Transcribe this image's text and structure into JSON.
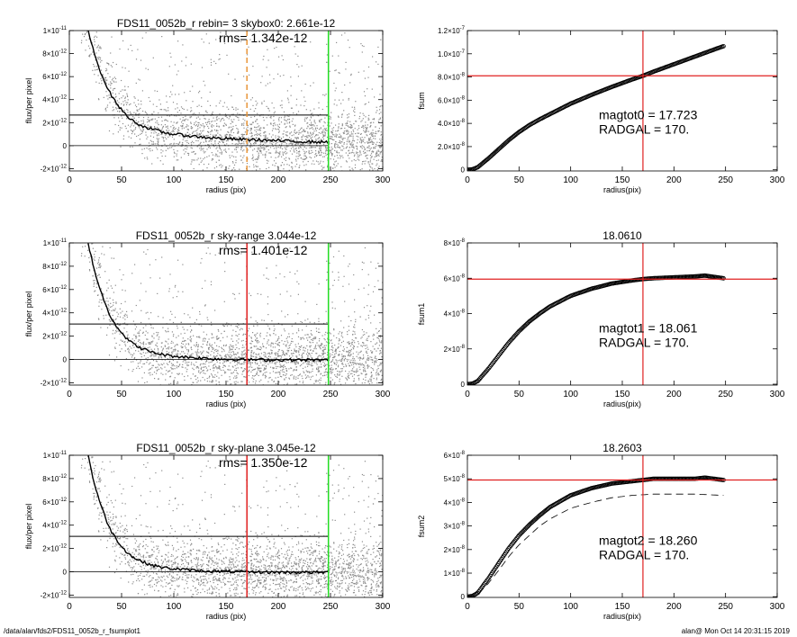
{
  "footer": {
    "path": "/data/alan/fds2/FDS11_0052b_r_fsumplot1",
    "user_time": "alan@  Mon Oct 14 20:31:15 2019"
  },
  "colors": {
    "axis": "#000000",
    "scatter": "#8c8c8c",
    "profile": "#000000",
    "red": "#e02020",
    "green": "#22dd22",
    "orange": "#e8963a"
  },
  "chart_data": [
    {
      "id": "flux1",
      "type": "scatter",
      "title": "FDS11_0052b_r rebin= 3    skybox0:  2.661e-12",
      "annotation": "rms= 1.342e-12",
      "xlabel": "radius (pix)",
      "ylabel": "flux/per pixel",
      "xlim": [
        0,
        300
      ],
      "ylim": [
        -2.2e-12,
        1e-11
      ],
      "xticks": [
        0,
        50,
        100,
        150,
        200,
        250,
        300
      ],
      "yticks": [
        {
          "value": -2e-12,
          "label": "-2×10-12"
        },
        {
          "value": 0,
          "label": "0"
        },
        {
          "value": 2e-12,
          "label": "2×10-12"
        },
        {
          "value": 4e-12,
          "label": "4×10-12"
        },
        {
          "value": 6e-12,
          "label": "6×10-12"
        },
        {
          "value": 8e-12,
          "label": "8×10-12"
        },
        {
          "value": 1e-11,
          "label": "1×10-11"
        }
      ],
      "sky_level": 2.661e-12,
      "rms": 1.342e-12,
      "vlines": [
        {
          "x": 170,
          "color": "orange",
          "dashed": true
        },
        {
          "x": 248,
          "color": "green",
          "dashed": false
        }
      ],
      "profile": {
        "x": [
          18,
          22,
          26,
          30,
          35,
          40,
          45,
          50,
          55,
          60,
          70,
          80,
          90,
          100,
          120,
          140,
          160,
          180,
          200,
          220,
          248
        ],
        "y": [
          1e-11,
          8.6e-12,
          7.4e-12,
          6.4e-12,
          5.3e-12,
          4.4e-12,
          3.7e-12,
          3.1e-12,
          2.6e-12,
          2.2e-12,
          1.7e-12,
          1.4e-12,
          1.15e-12,
          1e-12,
          8e-13,
          6.5e-13,
          5.5e-13,
          5e-13,
          4.2e-13,
          3.6e-13,
          3e-13
        ]
      }
    },
    {
      "id": "fsum",
      "type": "line",
      "title": "",
      "xlabel": "radius(pix)",
      "ylabel": "fsum",
      "annotation_lines": [
        "magtot0 =  17.723",
        "RADGAL =    170."
      ],
      "xlim": [
        0,
        300
      ],
      "ylim": [
        -1e-09,
        1.2e-07
      ],
      "xticks": [
        0,
        50,
        100,
        150,
        200,
        250,
        300
      ],
      "yticks": [
        {
          "value": 0,
          "label": "0"
        },
        {
          "value": 2e-08,
          "label": "2.0×10-8"
        },
        {
          "value": 4e-08,
          "label": "4.0×10-8"
        },
        {
          "value": 6e-08,
          "label": "6.0×10-8"
        },
        {
          "value": 8e-08,
          "label": "8.0×10-8"
        },
        {
          "value": 1e-07,
          "label": "1.0×10-7"
        },
        {
          "value": 1.2e-07,
          "label": "1.2×10-7"
        }
      ],
      "radgal": 170,
      "total": 8.1e-08,
      "curve": {
        "x": [
          0,
          5,
          10,
          20,
          30,
          40,
          50,
          60,
          70,
          80,
          100,
          120,
          140,
          160,
          170,
          180,
          200,
          220,
          240,
          248
        ],
        "y": [
          0,
          4e-10,
          2.2e-09,
          9.5e-09,
          1.75e-08,
          2.55e-08,
          3.25e-08,
          3.85e-08,
          4.35e-08,
          4.8e-08,
          5.7e-08,
          6.45e-08,
          7.15e-08,
          7.8e-08,
          8.1e-08,
          8.45e-08,
          9.1e-08,
          9.75e-08,
          1.04e-07,
          1.065e-07
        ]
      }
    },
    {
      "id": "flux2",
      "type": "scatter",
      "title": "FDS11_0052b_r sky-range  3.044e-12",
      "annotation": "rms= 1.401e-12",
      "xlabel": "radius (pix)",
      "ylabel": "flux/per pixel",
      "xlim": [
        0,
        300
      ],
      "ylim": [
        -2.2e-12,
        1e-11
      ],
      "xticks": [
        0,
        50,
        100,
        150,
        200,
        250,
        300
      ],
      "yticks": [
        {
          "value": -2e-12,
          "label": "-2×10-12"
        },
        {
          "value": 0,
          "label": "0"
        },
        {
          "value": 2e-12,
          "label": "2×10-12"
        },
        {
          "value": 4e-12,
          "label": "4×10-12"
        },
        {
          "value": 6e-12,
          "label": "6×10-12"
        },
        {
          "value": 8e-12,
          "label": "8×10-12"
        },
        {
          "value": 1e-11,
          "label": "1×10-11"
        }
      ],
      "sky_level": 3.044e-12,
      "rms": 1.401e-12,
      "vlines": [
        {
          "x": 170,
          "color": "red",
          "dashed": false
        },
        {
          "x": 248,
          "color": "green",
          "dashed": false
        }
      ],
      "profile": {
        "x": [
          18,
          22,
          26,
          30,
          35,
          40,
          45,
          50,
          55,
          60,
          70,
          80,
          90,
          100,
          120,
          140,
          160,
          180,
          200,
          220,
          248
        ],
        "y": [
          1e-11,
          8.4e-12,
          7e-12,
          5.9e-12,
          4.6e-12,
          3.6e-12,
          2.9e-12,
          2.3e-12,
          1.8e-12,
          1.4e-12,
          9e-13,
          6e-13,
          4e-13,
          2.8e-13,
          1.5e-13,
          5e-14,
          0,
          -3e-14,
          -4e-14,
          -5e-14,
          -6e-14
        ]
      }
    },
    {
      "id": "fsum1",
      "type": "line",
      "title": "18.0610",
      "xlabel": "radius(pix)",
      "ylabel": "fsum1",
      "annotation_lines": [
        "magtot1 =  18.061",
        "RADGAL =    170."
      ],
      "xlim": [
        0,
        300
      ],
      "ylim": [
        -5e-10,
        8e-08
      ],
      "xticks": [
        0,
        50,
        100,
        150,
        200,
        250,
        300
      ],
      "yticks": [
        {
          "value": 0,
          "label": "0"
        },
        {
          "value": 2e-08,
          "label": "2×10-8"
        },
        {
          "value": 4e-08,
          "label": "4×10-8"
        },
        {
          "value": 6e-08,
          "label": "6×10-8"
        },
        {
          "value": 8e-08,
          "label": "8×10-8"
        }
      ],
      "radgal": 170,
      "total": 5.95e-08,
      "curve": {
        "x": [
          0,
          5,
          10,
          20,
          30,
          40,
          50,
          60,
          70,
          80,
          90,
          100,
          120,
          140,
          160,
          170,
          180,
          200,
          220,
          230,
          248
        ],
        "y": [
          0,
          3e-10,
          1.8e-09,
          8.5e-09,
          1.6e-08,
          2.35e-08,
          3e-08,
          3.55e-08,
          4e-08,
          4.4e-08,
          4.7e-08,
          5e-08,
          5.4e-08,
          5.7e-08,
          5.88e-08,
          5.95e-08,
          6e-08,
          6.05e-08,
          6.1e-08,
          6.15e-08,
          6e-08
        ]
      }
    },
    {
      "id": "flux3",
      "type": "scatter",
      "title": "FDS11_0052b_r sky-plane  3.045e-12",
      "annotation": "rms= 1.350e-12",
      "xlabel": "radius (pix)",
      "ylabel": "flux/per pixel",
      "xlim": [
        0,
        300
      ],
      "ylim": [
        -2.2e-12,
        1e-11
      ],
      "xticks": [
        0,
        50,
        100,
        150,
        200,
        250,
        300
      ],
      "yticks": [
        {
          "value": -2e-12,
          "label": "-2×10-12"
        },
        {
          "value": 0,
          "label": "0"
        },
        {
          "value": 2e-12,
          "label": "2×10-12"
        },
        {
          "value": 4e-12,
          "label": "4×10-12"
        },
        {
          "value": 6e-12,
          "label": "6×10-12"
        },
        {
          "value": 8e-12,
          "label": "8×10-12"
        },
        {
          "value": 1e-11,
          "label": "1×10-11"
        }
      ],
      "sky_level": 3.045e-12,
      "rms": 1.35e-12,
      "vlines": [
        {
          "x": 170,
          "color": "red",
          "dashed": false
        },
        {
          "x": 248,
          "color": "green",
          "dashed": false
        }
      ],
      "profile": {
        "x": [
          18,
          22,
          26,
          30,
          35,
          40,
          45,
          50,
          55,
          60,
          70,
          80,
          90,
          100,
          120,
          140,
          160,
          180,
          200,
          220,
          248
        ],
        "y": [
          1e-11,
          8.3e-12,
          6.9e-12,
          5.8e-12,
          4.5e-12,
          3.5e-12,
          2.8e-12,
          2.2e-12,
          1.7e-12,
          1.3e-12,
          8.5e-13,
          5.5e-13,
          3.5e-13,
          2.5e-13,
          1.2e-13,
          4e-14,
          0,
          -3e-14,
          -4e-14,
          -5e-14,
          -6e-14
        ]
      }
    },
    {
      "id": "fsum2",
      "type": "line",
      "title": "18.2603",
      "xlabel": "radius(pix)",
      "ylabel": "fsum2",
      "annotation_lines": [
        "magtot2 =  18.260",
        "RADGAL =    170."
      ],
      "xlim": [
        0,
        300
      ],
      "ylim": [
        -3e-10,
        6e-08
      ],
      "xticks": [
        0,
        50,
        100,
        150,
        200,
        250,
        300
      ],
      "yticks": [
        {
          "value": 0,
          "label": "0"
        },
        {
          "value": 1e-08,
          "label": "1×10-8"
        },
        {
          "value": 2e-08,
          "label": "2×10-8"
        },
        {
          "value": 3e-08,
          "label": "3×10-8"
        },
        {
          "value": 4e-08,
          "label": "4×10-8"
        },
        {
          "value": 5e-08,
          "label": "5×10-8"
        },
        {
          "value": 6e-08,
          "label": "6×10-8"
        }
      ],
      "radgal": 170,
      "total": 4.95e-08,
      "curve": {
        "x": [
          0,
          5,
          10,
          20,
          30,
          40,
          50,
          60,
          70,
          80,
          90,
          100,
          120,
          140,
          160,
          170,
          180,
          200,
          220,
          230,
          248
        ],
        "y": [
          0,
          3e-10,
          1.6e-09,
          7.5e-09,
          1.4e-08,
          2.05e-08,
          2.6e-08,
          3.05e-08,
          3.45e-08,
          3.8e-08,
          4.05e-08,
          4.3e-08,
          4.6e-08,
          4.8e-08,
          4.9e-08,
          4.95e-08,
          5e-08,
          5e-08,
          5e-08,
          5.05e-08,
          4.95e-08
        ]
      },
      "dashed_curve": {
        "x": [
          0,
          10,
          20,
          30,
          40,
          50,
          60,
          70,
          80,
          100,
          120,
          140,
          160,
          180,
          200,
          220,
          248
        ],
        "y": [
          0,
          1e-09,
          5.5e-09,
          1.1e-08,
          1.7e-08,
          2.2e-08,
          2.6e-08,
          3e-08,
          3.3e-08,
          3.75e-08,
          4e-08,
          4.2e-08,
          4.3e-08,
          4.35e-08,
          4.35e-08,
          4.35e-08,
          4.3e-08
        ]
      }
    }
  ]
}
